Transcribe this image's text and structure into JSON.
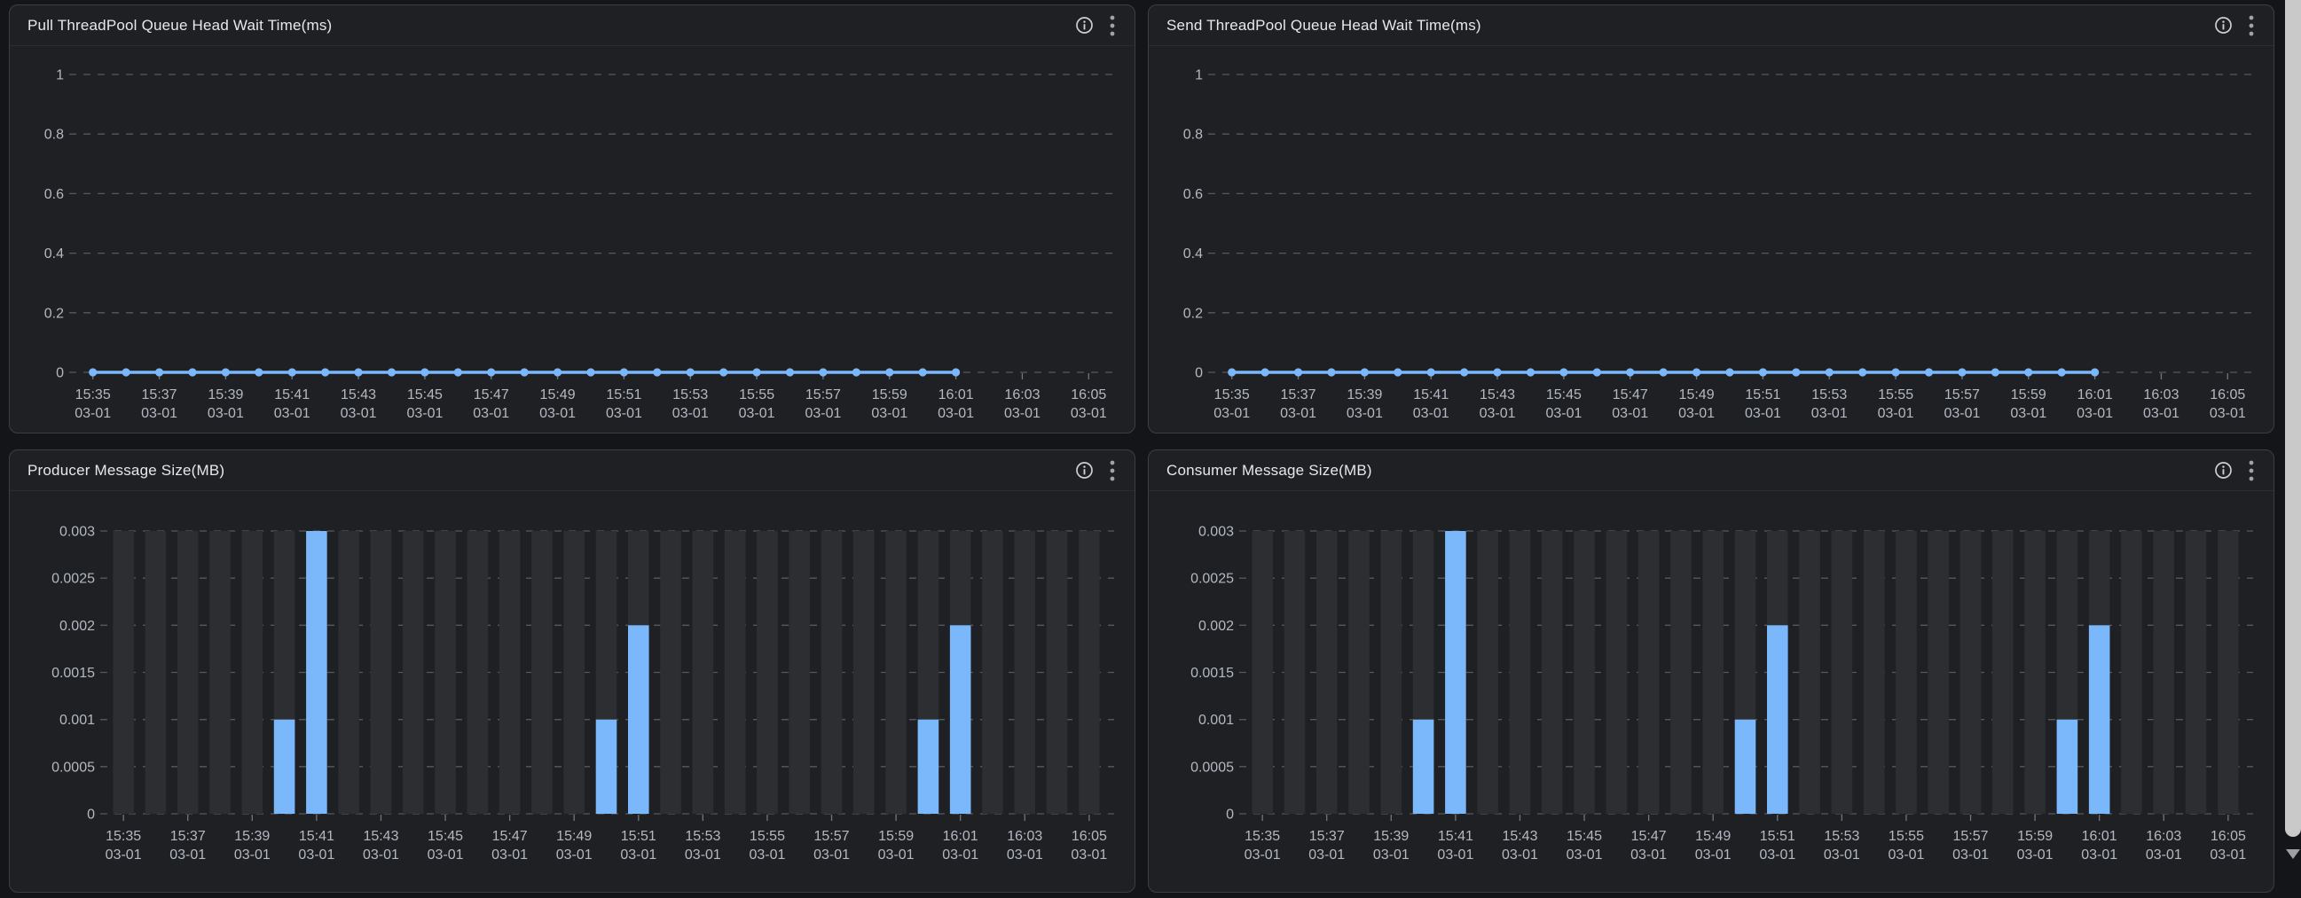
{
  "theme": {
    "page_bg": "#141518",
    "panel_bg": "#1e2023",
    "panel_border": "#3b3f45",
    "header_divider": "rgba(255,255,255,0.06)",
    "title_color": "#e6e8eb",
    "icon_color": "#ccd0d6",
    "axis_label_color": "#b3b9c2",
    "grid_color": "#55595f",
    "tick_color": "#71767d",
    "stripe_color": "#2c2e32",
    "accent_blue": "#7ab8fb",
    "scroll_thumb": "#c9c9c9",
    "scroll_arrow": "#9aa0a6"
  },
  "panels": [
    {
      "title": "Pull ThreadPool Queue Head Wait Time(ms)"
    },
    {
      "title": "Send ThreadPool Queue Head Wait Time(ms)"
    },
    {
      "title": "Producer Message Size(MB)"
    },
    {
      "title": "Consumer Message Size(MB)"
    }
  ],
  "icons": {
    "info": "info-circle",
    "menu": "kebab-vertical"
  },
  "chart_data": [
    {
      "type": "line",
      "title": "Pull ThreadPool Queue Head Wait Time(ms)",
      "ylim": [
        0,
        1
      ],
      "yticks": [
        0,
        0.2,
        0.4,
        0.6,
        0.8,
        1
      ],
      "x_date": "03-01",
      "x_slots": [
        "15:35",
        "15:36",
        "15:37",
        "15:38",
        "15:39",
        "15:40",
        "15:41",
        "15:42",
        "15:43",
        "15:44",
        "15:45",
        "15:46",
        "15:47",
        "15:48",
        "15:49",
        "15:50",
        "15:51",
        "15:52",
        "15:53",
        "15:54",
        "15:55",
        "15:56",
        "15:57",
        "15:58",
        "15:59",
        "16:00",
        "16:01",
        "16:02",
        "16:03",
        "16:04",
        "16:05"
      ],
      "x_tick_labels": [
        "15:35",
        "15:37",
        "15:39",
        "15:41",
        "15:43",
        "15:45",
        "15:47",
        "15:49",
        "15:51",
        "15:53",
        "15:55",
        "15:57",
        "15:59",
        "16:01",
        "16:03",
        "16:05"
      ],
      "x": [
        "15:35",
        "15:36",
        "15:37",
        "15:38",
        "15:39",
        "15:40",
        "15:41",
        "15:42",
        "15:43",
        "15:44",
        "15:45",
        "15:46",
        "15:47",
        "15:48",
        "15:49",
        "15:50",
        "15:51",
        "15:52",
        "15:53",
        "15:54",
        "15:55",
        "15:56",
        "15:57",
        "15:58",
        "15:59",
        "16:00",
        "16:01"
      ],
      "y": [
        0,
        0,
        0,
        0,
        0,
        0,
        0,
        0,
        0,
        0,
        0,
        0,
        0,
        0,
        0,
        0,
        0,
        0,
        0,
        0,
        0,
        0,
        0,
        0,
        0,
        0,
        0
      ],
      "grid": "dashed",
      "legend": "none"
    },
    {
      "type": "line",
      "title": "Send ThreadPool Queue Head Wait Time(ms)",
      "ylim": [
        0,
        1
      ],
      "yticks": [
        0,
        0.2,
        0.4,
        0.6,
        0.8,
        1
      ],
      "x_date": "03-01",
      "x_slots": [
        "15:35",
        "15:36",
        "15:37",
        "15:38",
        "15:39",
        "15:40",
        "15:41",
        "15:42",
        "15:43",
        "15:44",
        "15:45",
        "15:46",
        "15:47",
        "15:48",
        "15:49",
        "15:50",
        "15:51",
        "15:52",
        "15:53",
        "15:54",
        "15:55",
        "15:56",
        "15:57",
        "15:58",
        "15:59",
        "16:00",
        "16:01",
        "16:02",
        "16:03",
        "16:04",
        "16:05"
      ],
      "x_tick_labels": [
        "15:35",
        "15:37",
        "15:39",
        "15:41",
        "15:43",
        "15:45",
        "15:47",
        "15:49",
        "15:51",
        "15:53",
        "15:55",
        "15:57",
        "15:59",
        "16:01",
        "16:03",
        "16:05"
      ],
      "x": [
        "15:35",
        "15:36",
        "15:37",
        "15:38",
        "15:39",
        "15:40",
        "15:41",
        "15:42",
        "15:43",
        "15:44",
        "15:45",
        "15:46",
        "15:47",
        "15:48",
        "15:49",
        "15:50",
        "15:51",
        "15:52",
        "15:53",
        "15:54",
        "15:55",
        "15:56",
        "15:57",
        "15:58",
        "15:59",
        "16:00",
        "16:01"
      ],
      "y": [
        0,
        0,
        0,
        0,
        0,
        0,
        0,
        0,
        0,
        0,
        0,
        0,
        0,
        0,
        0,
        0,
        0,
        0,
        0,
        0,
        0,
        0,
        0,
        0,
        0,
        0,
        0
      ],
      "grid": "dashed",
      "legend": "none"
    },
    {
      "type": "bar",
      "title": "Producer Message Size(MB)",
      "ylim": [
        0,
        0.003
      ],
      "yticks": [
        0,
        0.0005,
        0.001,
        0.0015,
        0.002,
        0.0025,
        0.003
      ],
      "x_date": "03-01",
      "x_slots": [
        "15:35",
        "15:36",
        "15:37",
        "15:38",
        "15:39",
        "15:40",
        "15:41",
        "15:42",
        "15:43",
        "15:44",
        "15:45",
        "15:46",
        "15:47",
        "15:48",
        "15:49",
        "15:50",
        "15:51",
        "15:52",
        "15:53",
        "15:54",
        "15:55",
        "15:56",
        "15:57",
        "15:58",
        "15:59",
        "16:00",
        "16:01",
        "16:02",
        "16:03",
        "16:04",
        "16:05"
      ],
      "x_tick_labels": [
        "15:35",
        "15:37",
        "15:39",
        "15:41",
        "15:43",
        "15:45",
        "15:47",
        "15:49",
        "15:51",
        "15:53",
        "15:55",
        "15:57",
        "15:59",
        "16:01",
        "16:03",
        "16:05"
      ],
      "values": [
        0,
        0,
        0,
        0,
        0,
        0.001,
        0.003,
        0,
        0,
        0,
        0,
        0,
        0,
        0,
        0,
        0.001,
        0.002,
        0,
        0,
        0,
        0,
        0,
        0,
        0,
        0,
        0.001,
        0.002,
        0,
        0,
        0,
        0
      ],
      "background_bars": true,
      "grid": "dashed",
      "legend": "none"
    },
    {
      "type": "bar",
      "title": "Consumer Message Size(MB)",
      "ylim": [
        0,
        0.003
      ],
      "yticks": [
        0,
        0.0005,
        0.001,
        0.0015,
        0.002,
        0.0025,
        0.003
      ],
      "x_date": "03-01",
      "x_slots": [
        "15:35",
        "15:36",
        "15:37",
        "15:38",
        "15:39",
        "15:40",
        "15:41",
        "15:42",
        "15:43",
        "15:44",
        "15:45",
        "15:46",
        "15:47",
        "15:48",
        "15:49",
        "15:50",
        "15:51",
        "15:52",
        "15:53",
        "15:54",
        "15:55",
        "15:56",
        "15:57",
        "15:58",
        "15:59",
        "16:00",
        "16:01",
        "16:02",
        "16:03",
        "16:04",
        "16:05"
      ],
      "x_tick_labels": [
        "15:35",
        "15:37",
        "15:39",
        "15:41",
        "15:43",
        "15:45",
        "15:47",
        "15:49",
        "15:51",
        "15:53",
        "15:55",
        "15:57",
        "15:59",
        "16:01",
        "16:03",
        "16:05"
      ],
      "values": [
        0,
        0,
        0,
        0,
        0,
        0.001,
        0.003,
        0,
        0,
        0,
        0,
        0,
        0,
        0,
        0,
        0.001,
        0.002,
        0,
        0,
        0,
        0,
        0,
        0,
        0,
        0,
        0.001,
        0.002,
        0,
        0,
        0,
        0
      ],
      "background_bars": true,
      "grid": "dashed",
      "legend": "none"
    }
  ]
}
